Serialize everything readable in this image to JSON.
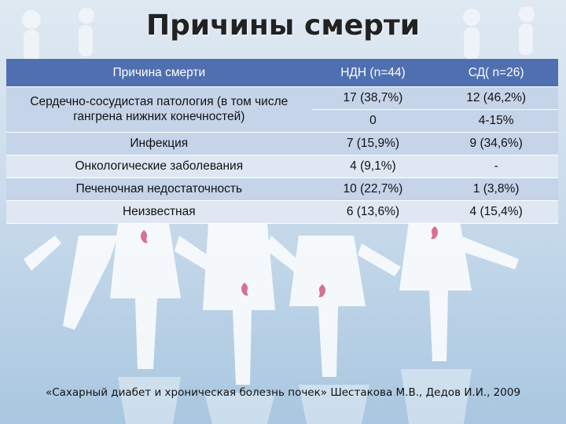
{
  "title": "Причины смерти",
  "table": {
    "headers": [
      "Причина смерти",
      "НДН (n=44)",
      "СД( n=26)"
    ],
    "rows": [
      {
        "cause": "Сердечно-сосудистая патология (в том числе гангрена нижних конечностей)",
        "ndn": "17 (38,7%)",
        "sd": "12 (46,2%)"
      },
      {
        "cause": "",
        "ndn": "0",
        "sd": "4-15%"
      },
      {
        "cause": "Инфекция",
        "ndn": "7 (15,9%)",
        "sd": "9 (34,6%)"
      },
      {
        "cause": "Онкологические заболевания",
        "ndn": "4 (9,1%)",
        "sd": "-"
      },
      {
        "cause": "Печеночная недостаточность",
        "ndn": "10 (22,7%)",
        "sd": "1 (3,8%)"
      },
      {
        "cause": "Неизвестная",
        "ndn": "6 (13,6%)",
        "sd": "4 (15,4%)"
      }
    ]
  },
  "citation": "«Сахарный диабет и хроническая болезнь почек» Шестакова М.В., Дедов И.И., 2009",
  "colors": {
    "header_bg": "#4f6fb0",
    "row_dark": "#c4d3e8",
    "row_light": "#e1e8f2",
    "kidney": "#d9708f"
  }
}
